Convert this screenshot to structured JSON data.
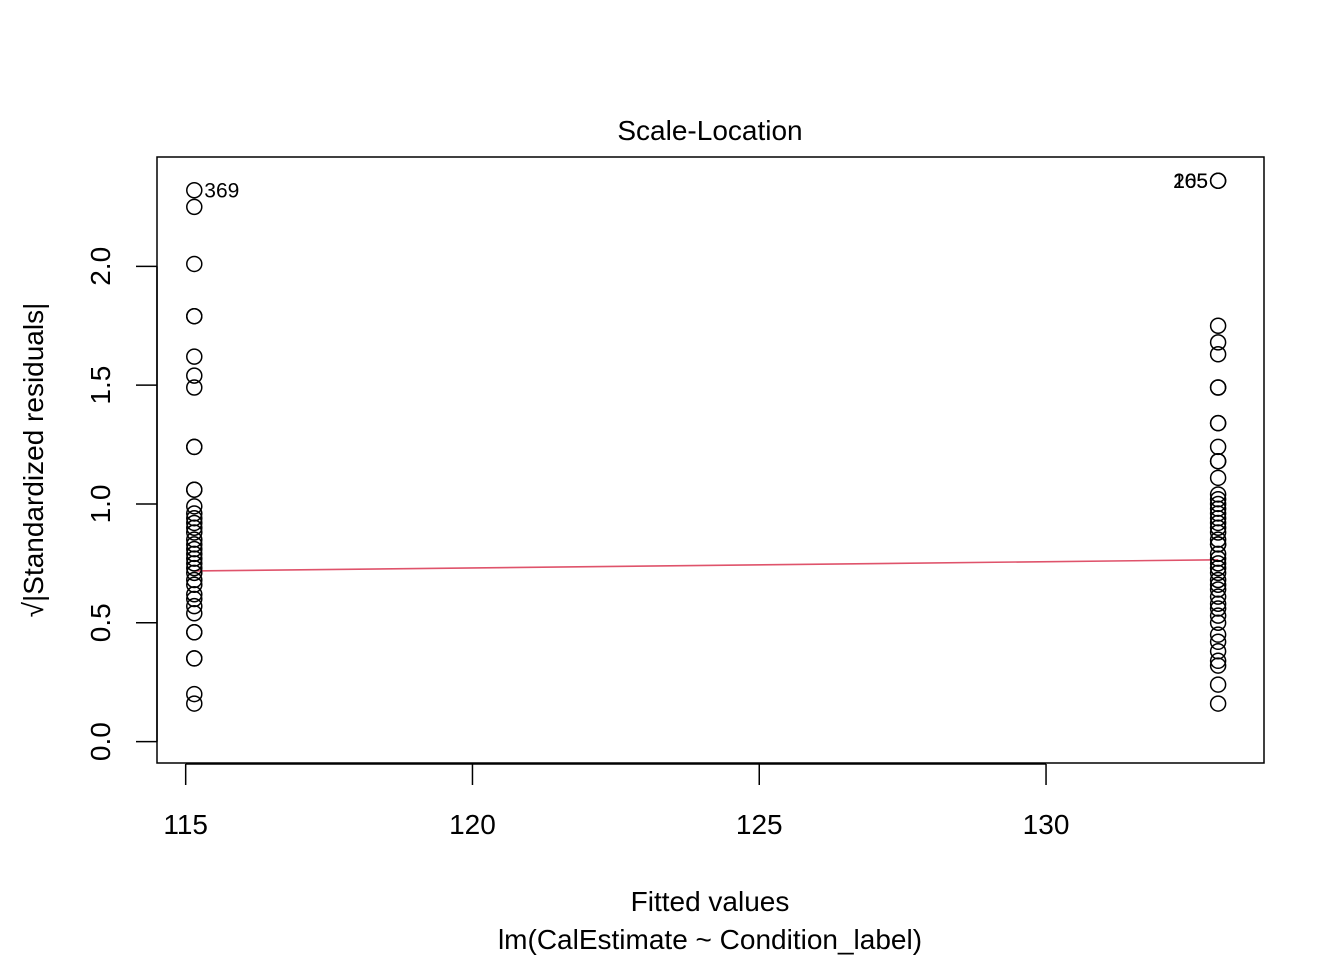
{
  "chart_data": {
    "type": "scatter",
    "title": "Scale-Location",
    "xlabel": "Fitted values",
    "sublabel": "lm(CalEstimate ~ Condition_label)",
    "ylabel": "√|Standardized residuals|",
    "xlim": [
      114.5,
      133.8
    ],
    "ylim": [
      -0.09,
      2.46
    ],
    "x_ticks": [
      115,
      120,
      125,
      130
    ],
    "y_ticks": [
      0.0,
      0.5,
      1.0,
      1.5,
      2.0
    ],
    "x_tick_labels": [
      "115",
      "120",
      "125",
      "130"
    ],
    "y_tick_labels": [
      "0.0",
      "0.5",
      "1.0",
      "1.5",
      "2.0"
    ],
    "grid": false,
    "groups": [
      {
        "x": 115.15,
        "y": [
          2.32,
          2.25,
          2.01,
          1.79,
          1.79,
          1.62,
          1.54,
          1.49,
          1.24,
          1.24,
          1.06,
          1.06,
          0.99,
          0.96,
          0.94,
          0.92,
          0.9,
          0.88,
          0.85,
          0.83,
          0.81,
          0.79,
          0.77,
          0.75,
          0.73,
          0.71,
          0.68,
          0.66,
          0.62,
          0.6,
          0.57,
          0.54,
          0.46,
          0.46,
          0.35,
          0.35,
          0.2,
          0.16
        ]
      },
      {
        "x": 133.0,
        "y": [
          2.36,
          2.36,
          1.75,
          1.68,
          1.63,
          1.49,
          1.49,
          1.34,
          1.34,
          1.24,
          1.18,
          1.18,
          1.11,
          1.04,
          1.02,
          1.0,
          0.98,
          0.96,
          0.94,
          0.92,
          0.9,
          0.88,
          0.85,
          0.83,
          0.83,
          0.79,
          0.77,
          0.75,
          0.73,
          0.71,
          0.68,
          0.66,
          0.64,
          0.61,
          0.58,
          0.56,
          0.53,
          0.5,
          0.45,
          0.42,
          0.38,
          0.34,
          0.32,
          0.24,
          0.16
        ]
      }
    ],
    "smoother": {
      "color": "#DF536B",
      "x": [
        115.15,
        133.0
      ],
      "y": [
        0.718,
        0.765
      ]
    },
    "annotations": [
      {
        "text": "369",
        "x": 115.15,
        "y": 2.32,
        "side": "right"
      },
      {
        "text": "205",
        "x": 133.0,
        "y": 2.36,
        "side": "left"
      },
      {
        "text": "165",
        "x": 133.0,
        "y": 2.36,
        "side": "left"
      }
    ]
  }
}
